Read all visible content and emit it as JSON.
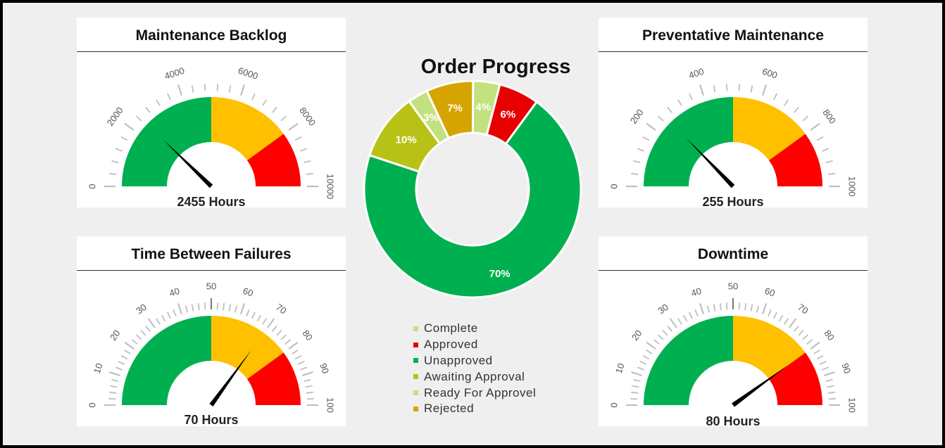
{
  "gauges": [
    {
      "title": "Maintenance Backlog",
      "min": 0,
      "max": 10000,
      "tick_labels": [
        "0",
        "2000",
        "4000",
        "6000",
        "8000",
        "10000"
      ],
      "bands": [
        {
          "from": 0,
          "to": 5000,
          "color": "#00b050"
        },
        {
          "from": 5000,
          "to": 8000,
          "color": "#ffc000"
        },
        {
          "from": 8000,
          "to": 10000,
          "color": "#ff0000"
        }
      ],
      "value": 2455,
      "readout": "2455 Hours"
    },
    {
      "title": "Preventative Maintenance",
      "min": 0,
      "max": 1000,
      "tick_labels": [
        "0",
        "200",
        "400",
        "600",
        "800",
        "1000"
      ],
      "bands": [
        {
          "from": 0,
          "to": 500,
          "color": "#00b050"
        },
        {
          "from": 500,
          "to": 800,
          "color": "#ffc000"
        },
        {
          "from": 800,
          "to": 1000,
          "color": "#ff0000"
        }
      ],
      "value": 255,
      "readout": "255 Hours"
    },
    {
      "title": "Time Between Failures",
      "min": 0,
      "max": 100,
      "tick_labels": [
        "0",
        "10",
        "20",
        "30",
        "40",
        "50",
        "60",
        "70",
        "80",
        "90",
        "100"
      ],
      "bands": [
        {
          "from": 0,
          "to": 50,
          "color": "#00b050"
        },
        {
          "from": 50,
          "to": 80,
          "color": "#ffc000"
        },
        {
          "from": 80,
          "to": 100,
          "color": "#ff0000"
        }
      ],
      "value": 70,
      "readout": "70 Hours"
    },
    {
      "title": "Downtime",
      "min": 0,
      "max": 100,
      "tick_labels": [
        "0",
        "10",
        "20",
        "30",
        "40",
        "50",
        "60",
        "70",
        "80",
        "90",
        "100"
      ],
      "bands": [
        {
          "from": 0,
          "to": 50,
          "color": "#00b050"
        },
        {
          "from": 50,
          "to": 80,
          "color": "#ffc000"
        },
        {
          "from": 80,
          "to": 100,
          "color": "#ff0000"
        }
      ],
      "value": 80,
      "readout": "80 Hours"
    }
  ],
  "chart_data": {
    "type": "pie",
    "title": "Order Progress",
    "legend_position": "bottom",
    "slices": [
      {
        "label": "Complete",
        "value": 4,
        "display": "4%",
        "color": "#c4e17f"
      },
      {
        "label": "Approved",
        "value": 6,
        "display": "6%",
        "color": "#e60000"
      },
      {
        "label": "Unapproved",
        "value": 70,
        "display": "70%",
        "color": "#00b050"
      },
      {
        "label": "Awaiting Approval",
        "value": 10,
        "display": "10%",
        "color": "#b8c216"
      },
      {
        "label": "Ready For Approvel",
        "value": 3,
        "display": "3%",
        "color": "#c4e17f"
      },
      {
        "label": "Rejected",
        "value": 7,
        "display": "7%",
        "color": "#d6a400"
      }
    ]
  },
  "colors": {
    "needle": "#000000",
    "tick": "#bfbfbf",
    "tick_label": "#555555"
  }
}
